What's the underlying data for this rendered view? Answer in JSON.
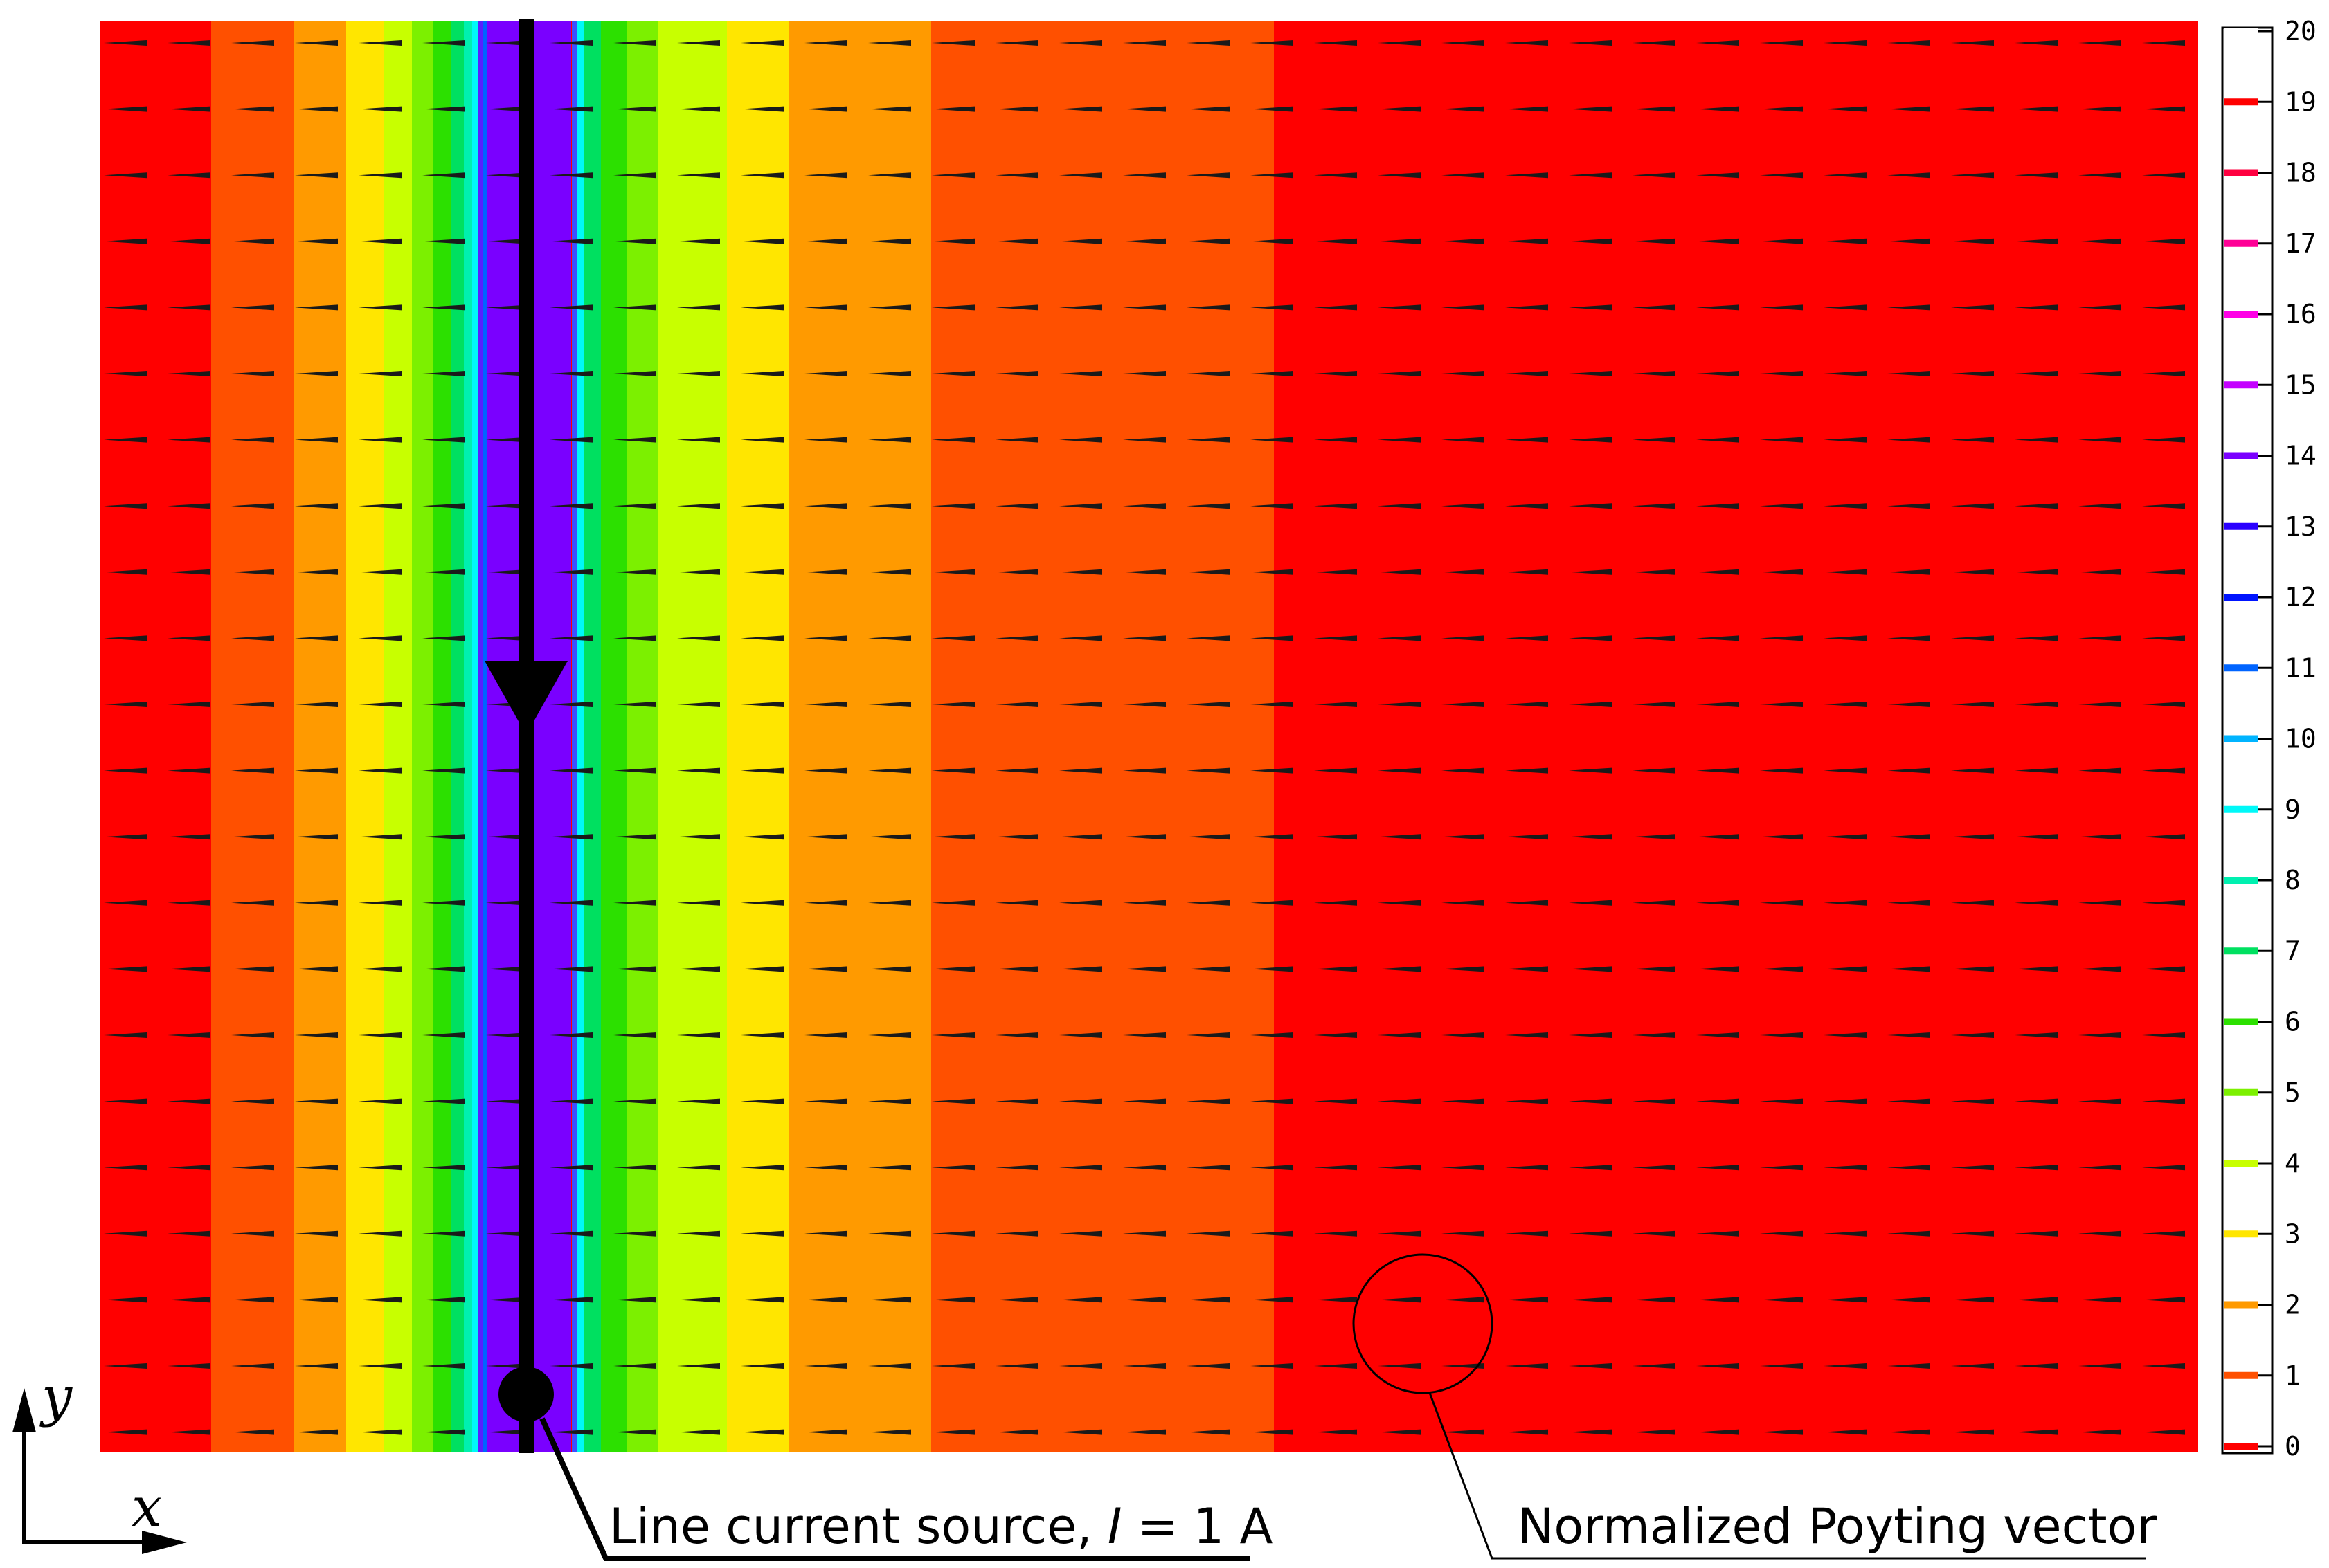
{
  "colorbar": {
    "ticks": [
      "0",
      "1",
      "2",
      "3",
      "4",
      "5",
      "6",
      "7",
      "8",
      "9",
      "10",
      "11",
      "12",
      "13",
      "14",
      "15",
      "16",
      "17",
      "18",
      "19",
      "20"
    ],
    "colors": [
      "#ff0000",
      "#ff5000",
      "#ff9a00",
      "#ffe600",
      "#c8ff00",
      "#7cf000",
      "#2ce000",
      "#00e060",
      "#00f0b0",
      "#00f8f8",
      "#00b4ff",
      "#0064ff",
      "#0014ff",
      "#2a00ff",
      "#7a00ff",
      "#c400ff",
      "#ff00e6",
      "#ff0096",
      "#ff0040",
      "#ff0000",
      "#ffffff"
    ]
  },
  "field_bands": {
    "description_colors": [
      "#ff0000",
      "#ff5000",
      "#ff9a00",
      "#ffe600",
      "#c8ff00",
      "#7cf000",
      "#2ce000",
      "#00e060",
      "#00f0b0",
      "#00f8f8",
      "#00b4ff",
      "#0064ff",
      "#7a00ff",
      "#ff0000",
      "#00f8f8",
      "#00e060",
      "#2ce000",
      "#7cf000",
      "#c8ff00",
      "#ffe600",
      "#ff9a00",
      "#ff5000",
      "#ff0000"
    ]
  },
  "labels": {
    "line_source_pre": "Line current source, ",
    "line_source_I": "I",
    "line_source_post": " = 1 A",
    "poynting": "Normalized Poyting vector",
    "axis_x": "x",
    "axis_y": "y"
  },
  "colors": {
    "arrow": "#1a1a1a",
    "wire": "#000000"
  }
}
